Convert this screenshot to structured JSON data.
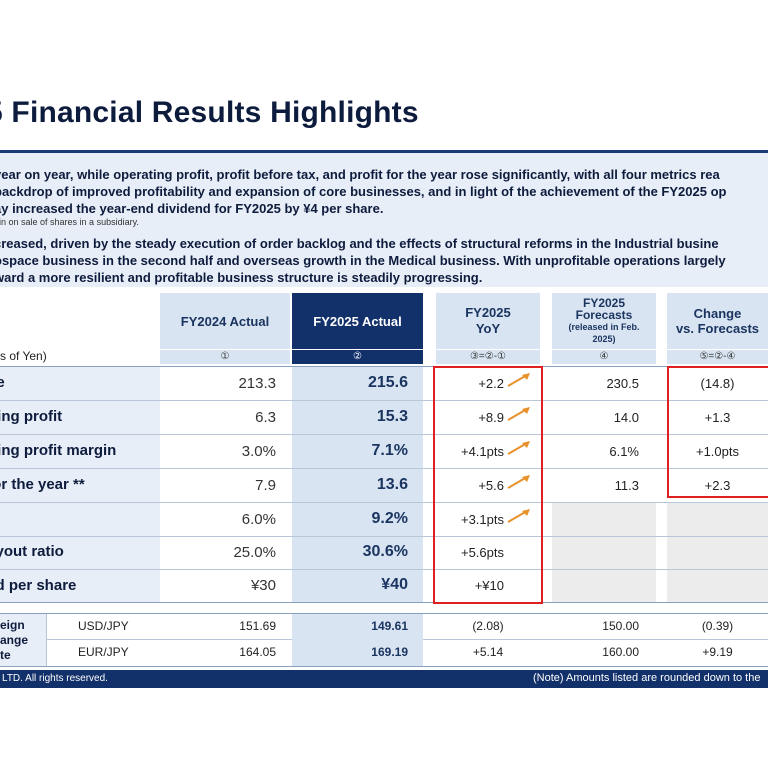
{
  "slide": {
    "title": "5 Financial Results Highlights",
    "summary": {
      "line1": "year on year, while operating profit, profit before tax, and profit for the year rose significantly, with all four metrics rea",
      "line2": "backdrop of improved profitability and expansion of core businesses, and in light of the achievement of the FY2025 op",
      "line3": "ay increased the year-end dividend for FY2025 by ¥4 per share.",
      "footnote": "ain on sale of shares in a subsidiary.",
      "line4": "creased, driven by the steady execution of order backlog and the effects of structural reforms in the Industrial busine",
      "line5": "ospace business in the second half and overseas growth in the Medical business. With unprofitable operations largely",
      "line6": "ward a more resilient and profitable business structure is steadily progressing."
    }
  },
  "table": {
    "units_label": "s of Yen)",
    "headers": {
      "col1": "FY2024 Actual",
      "col2": "FY2025 Actual",
      "col3_line1": "FY2025",
      "col3_line2": "YoY",
      "col4_line1": "FY2025",
      "col4_line2": "Forecasts",
      "col4_line3": "(released in Feb.",
      "col4_line4": "2025)",
      "col5_line1": "Change",
      "col5_line2": "vs. Forecasts"
    },
    "markers": {
      "col1": "①",
      "col2": "②",
      "col3": "③=②-①",
      "col4": "④",
      "col5": "⑤=②-④"
    },
    "rows": [
      {
        "label": "nue",
        "fy2024": "213.3",
        "fy2025": "215.6",
        "yoy": "+2.2",
        "forecast": "230.5",
        "change": "(14.8)"
      },
      {
        "label": "rating profit",
        "fy2024": "6.3",
        "fy2025": "15.3",
        "yoy": "+8.9",
        "forecast": "14.0",
        "change": "+1.3"
      },
      {
        "label": "rating profit margin",
        "fy2024": "3.0%",
        "fy2025": "7.1%",
        "yoy": "+4.1pts",
        "forecast": "6.1%",
        "change": "+1.0pts"
      },
      {
        "label": "t for the year **",
        "fy2024": "7.9",
        "fy2025": "13.6",
        "yoy": "+5.6",
        "forecast": "11.3",
        "change": "+2.3"
      },
      {
        "label": "",
        "fy2024": "6.0%",
        "fy2025": "9.2%",
        "yoy": "+3.1pts",
        "forecast": "",
        "change": ""
      },
      {
        "label": "payout ratio",
        "fy2024": "25.0%",
        "fy2025": "30.6%",
        "yoy": "+5.6pts",
        "forecast": "",
        "change": ""
      },
      {
        "label": "end per share",
        "fy2024": "¥30",
        "fy2025": "¥40",
        "yoy": "+¥10",
        "forecast": "",
        "change": ""
      }
    ],
    "fx": {
      "label_line1": "eign",
      "label_line2": "ange",
      "label_line3": "te",
      "rows": [
        {
          "pair": "USD/JPY",
          "fy2024": "151.69",
          "fy2025": "149.61",
          "yoy": "(2.08)",
          "forecast": "150.00",
          "change": "(0.39)"
        },
        {
          "pair": "EUR/JPY",
          "fy2024": "164.05",
          "fy2025": "169.19",
          "yoy": "+5.14",
          "forecast": "160.00",
          "change": "+9.19"
        }
      ]
    }
  },
  "footer": {
    "copyright": "LTD. All rights reserved.",
    "note": "(Note) Amounts listed are rounded down to the"
  },
  "colors": {
    "navy": "#12306a",
    "light_blue": "#d9e4f2",
    "highlight_red": "#e02020",
    "arrow_orange": "#e8902a"
  },
  "icons": {
    "trend": "trend-up-arrow-icon"
  }
}
